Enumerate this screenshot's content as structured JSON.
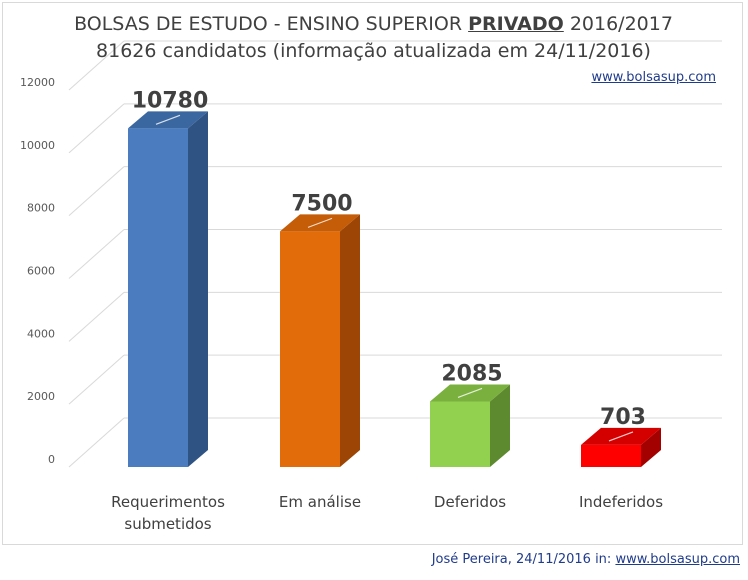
{
  "title": {
    "prefix": "BOLSAS DE ESTUDO - ENSINO SUPERIOR ",
    "emphasis": "PRIVADO",
    "suffix": " 2016/2017",
    "line2": "81626 candidatos (informação atualizada em 24/11/2016)"
  },
  "site_link": "www.bolsasup.com",
  "footer": {
    "text": "José Pereira, 24/11/2016 in: ",
    "link": "www.bolsasup.com"
  },
  "chart_data": {
    "type": "bar",
    "style": "3d-column",
    "categories": [
      [
        "Requerimentos",
        "submetidos"
      ],
      [
        "Em análise"
      ],
      [
        "Deferidos"
      ],
      [
        "Indeferidos"
      ]
    ],
    "values": [
      10780,
      7500,
      2085,
      703
    ],
    "data_labels": [
      "10780",
      "7500",
      "2085",
      "703"
    ],
    "ylim": [
      0,
      12000
    ],
    "yticks": [
      "0",
      "2000",
      "4000",
      "6000",
      "8000",
      "10000",
      "12000"
    ],
    "colors": [
      {
        "front": "#4a7cbf",
        "side": "#2f5383",
        "top": "#3a679f"
      },
      {
        "front": "#e36c0a",
        "side": "#9c4505",
        "top": "#c45c08"
      },
      {
        "front": "#92d050",
        "side": "#5e8a2f",
        "top": "#79b03e"
      },
      {
        "front": "#ff0000",
        "side": "#a30000",
        "top": "#d40000"
      }
    ],
    "grid": true,
    "legend": "none"
  }
}
